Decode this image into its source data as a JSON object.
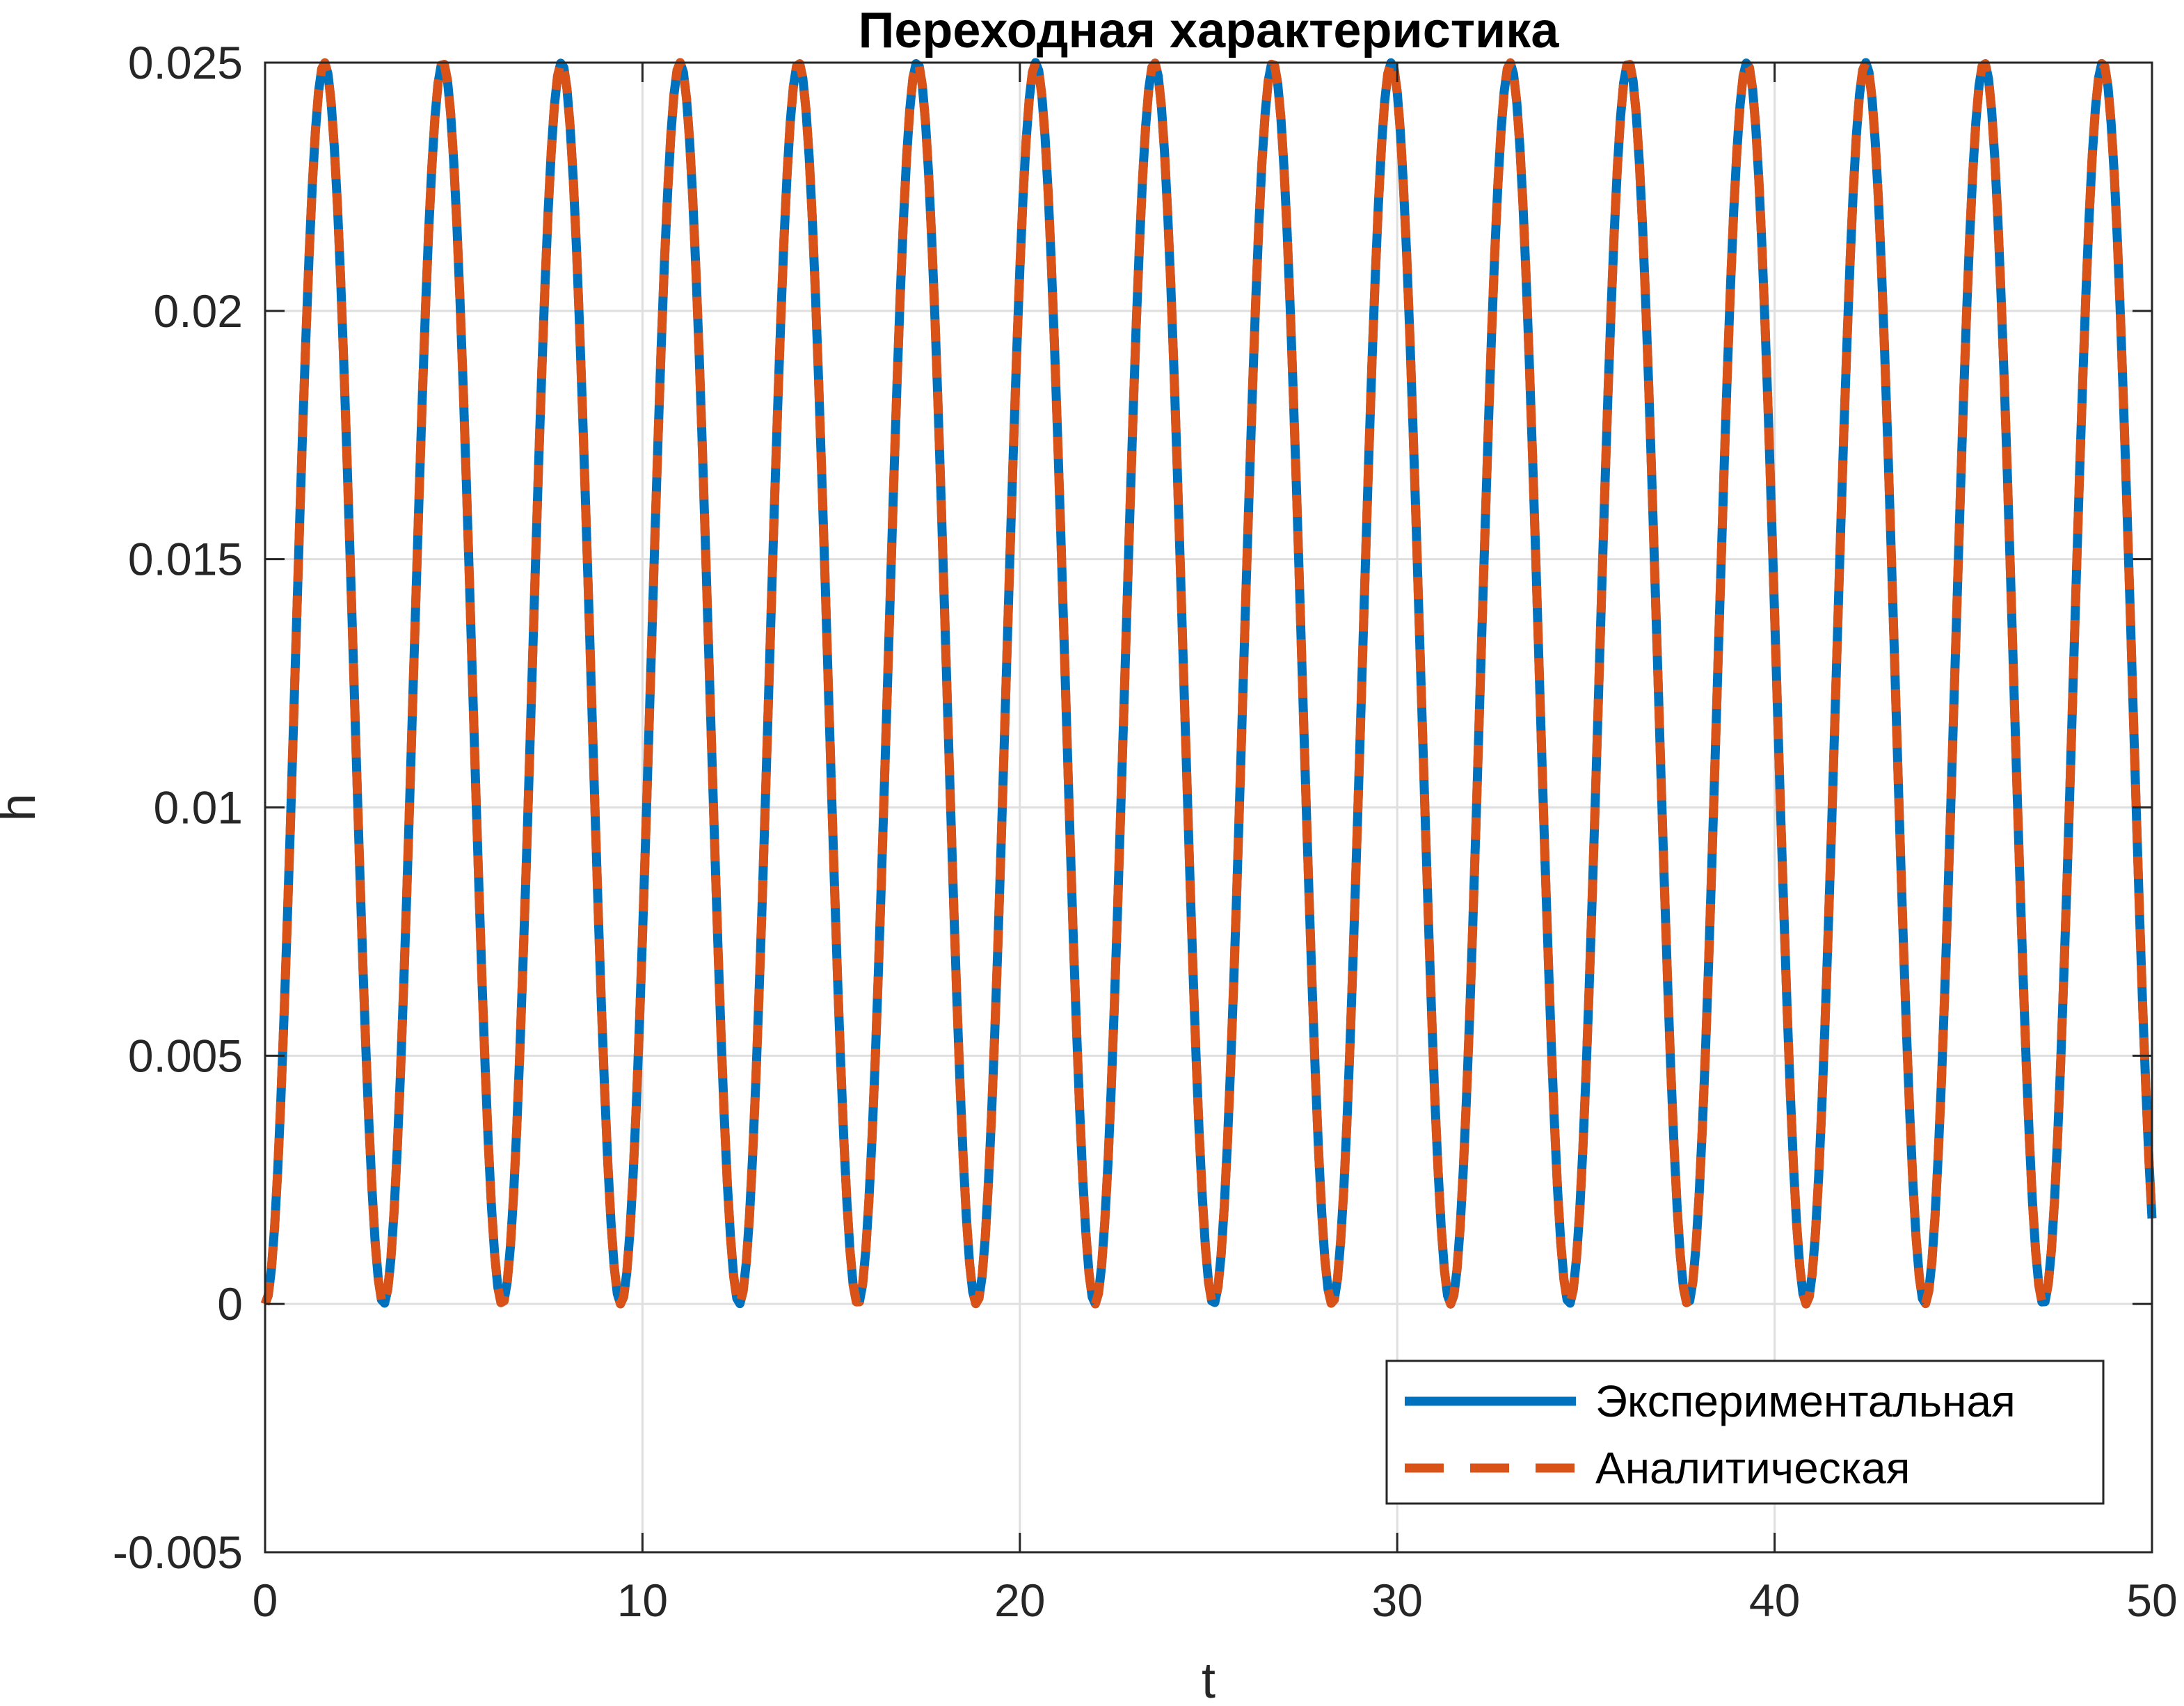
{
  "chart_data": {
    "type": "line",
    "title": "Переходная характеристика",
    "xlabel": "t",
    "ylabel": "h",
    "xlim": [
      0,
      50
    ],
    "ylim": [
      -0.005,
      0.025
    ],
    "xticks": [
      0,
      10,
      20,
      30,
      40,
      50
    ],
    "xtick_labels": [
      "0",
      "10",
      "20",
      "30",
      "40",
      "50"
    ],
    "yticks": [
      -0.005,
      0,
      0.005,
      0.01,
      0.015,
      0.02,
      0.025
    ],
    "ytick_labels": [
      "-0.005",
      "0",
      "0.005",
      "0.01",
      "0.015",
      "0.02",
      "0.025"
    ],
    "grid": true,
    "legend_position": "bottom-right",
    "series": [
      {
        "name": "Экспериментальная",
        "style": "solid",
        "color": "#0072BD",
        "amplitude": 0.0125,
        "offset": 0.0125,
        "angular_frequency": 2,
        "phase": -1.5708,
        "t_start": 0,
        "t_end": 50,
        "formula": "h(t) = 0.0125*(1 - cos(2t))"
      },
      {
        "name": "Аналитическая",
        "style": "dashed",
        "color": "#D95319",
        "amplitude": 0.0125,
        "offset": 0.0125,
        "angular_frequency": 2,
        "phase": -1.5708,
        "t_start": 0,
        "t_end": 50,
        "formula": "h(t) = 0.0125*(1 - cos(2t))"
      }
    ]
  }
}
